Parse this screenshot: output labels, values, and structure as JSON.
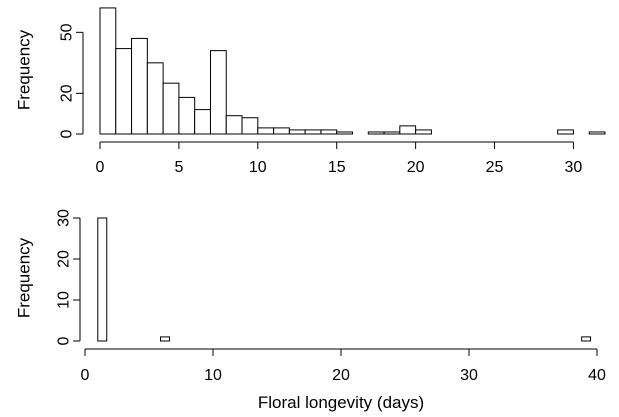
{
  "chart_data": [
    {
      "type": "bar",
      "subtype": "histogram",
      "xlabel": "",
      "ylabel": "Frequency",
      "bin_width": 1,
      "x_start": 0,
      "x_end": 32,
      "xlim": [
        0,
        32
      ],
      "ylim": [
        0,
        60
      ],
      "xticks": [
        0,
        5,
        10,
        15,
        20,
        25,
        30
      ],
      "yticks": [
        0,
        20,
        50
      ],
      "values": [
        62,
        42,
        47,
        35,
        25,
        18,
        12,
        41,
        9,
        8,
        3,
        3,
        2,
        2,
        2,
        1,
        0,
        1,
        1,
        4,
        2,
        0,
        0,
        0,
        0,
        0,
        0,
        0,
        0,
        2,
        0,
        1
      ],
      "grid": false
    },
    {
      "type": "bar",
      "subtype": "histogram",
      "xlabel": "Floral longevity (days)",
      "ylabel": "Frequency",
      "bin_width": 0.7,
      "x_start": 1,
      "x_end": 40,
      "xlim": [
        0,
        40
      ],
      "ylim": [
        0,
        30
      ],
      "xticks": [
        0,
        10,
        20,
        30,
        40
      ],
      "yticks": [
        0,
        10,
        20,
        30
      ],
      "values": [
        30,
        0,
        0,
        0,
        0,
        0,
        0,
        1,
        0,
        0,
        0,
        0,
        0,
        0,
        0,
        0,
        0,
        0,
        0,
        0,
        0,
        0,
        0,
        0,
        0,
        0,
        0,
        0,
        0,
        0,
        0,
        0,
        0,
        0,
        0,
        0,
        0,
        0,
        0,
        0,
        0,
        0,
        0,
        0,
        0,
        0,
        0,
        0,
        0,
        0,
        0,
        0,
        0,
        0,
        1
      ],
      "grid": false
    }
  ]
}
